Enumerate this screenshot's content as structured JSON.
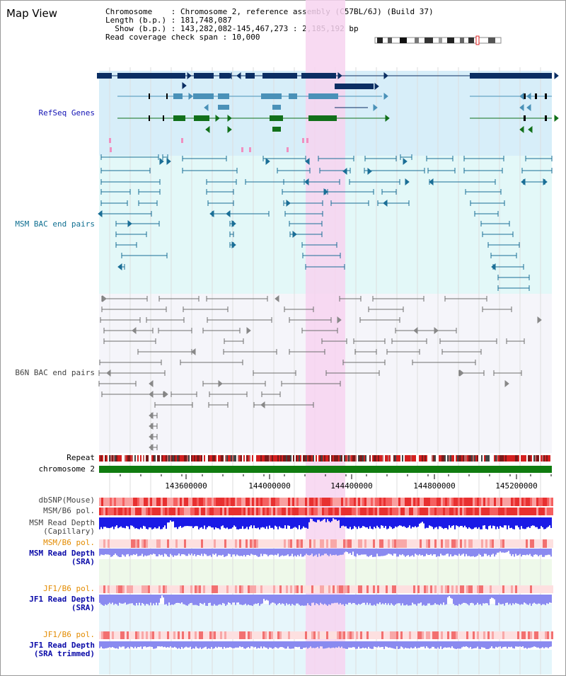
{
  "header": {
    "title": "Map View",
    "chromosome_line": "Chromosome    : Chromosome 2, reference assembly (C57BL/6J) (Build 37)",
    "length_line": "Length (b.p.) : 181,748,087",
    "show_line": "  Show (b.p.) : 143,282,082-145,467,273 : 2,185,192 bp",
    "coverage_line": "Read coverage check span : 10,000"
  },
  "tracks": {
    "refseq": "RefSeq Genes",
    "msm_bac": "MSM BAC end pairs",
    "b6n_bac": "B6N BAC end pairs",
    "repeat": "Repeat",
    "chromosome": "chromosome 2",
    "dbsnp": "dbSNP(Mouse)",
    "msm_b6_pol": "MSM/B6 pol.",
    "msm_depth_cap_1": "MSM Read Depth",
    "msm_depth_cap_2": "(Capillary)",
    "msm_b6_pol_2": "MSM/B6 pol.",
    "msm_depth_sra_1": "MSM Read Depth",
    "msm_depth_sra_2": "(SRA)",
    "jf1_b6_pol": "JF1/B6 pol.",
    "jf1_depth_sra_1": "JF1 Read Depth",
    "jf1_depth_sra_2": "(SRA)",
    "jf1_b6_pol_2": "JF1/B6 pol.",
    "jf1_depth_trim_1": "JF1 Read Depth",
    "jf1_depth_trim_2": "(SRA trimmed)"
  },
  "axis": {
    "ticks": [
      "143600000",
      "144000000",
      "144400000",
      "144800000",
      "145200000"
    ]
  },
  "colors": {
    "highlight": "#f7d3f0",
    "refseq_bg": "#d7eef9",
    "msm_bg": "#e3f8f8",
    "b6n_bg": "#f5f5fa",
    "gene_dark": "#0b2e63",
    "gene_mid": "#4a91b8",
    "gene_green": "#12701a",
    "msm_line": "#1a6e96",
    "b6n_line": "#6e6e6e",
    "chromosome_bar": "#107c10",
    "pol_red": "#f04a4a",
    "depth_blue": "#1a1ae6",
    "depth_light": "#8a8af0"
  }
}
